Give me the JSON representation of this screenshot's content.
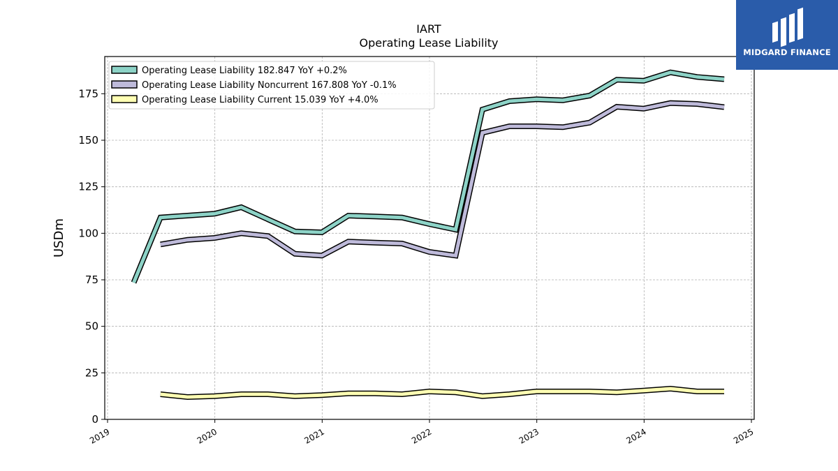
{
  "brand": {
    "name": "MIDGARD FINANCE",
    "color": "#2a5caa"
  },
  "chart_data": {
    "type": "line",
    "title": "IART",
    "subtitle": "Operating Lease Liability",
    "ylabel": "USDm",
    "xlabel": "",
    "xlim": [
      2019.0,
      2025.0
    ],
    "ylim": [
      0,
      195
    ],
    "grid": true,
    "legend_position": "top-left",
    "x_ticks": [
      "2019",
      "2020",
      "2021",
      "2022",
      "2023",
      "2024",
      "2025"
    ],
    "y_ticks": [
      "0",
      "25",
      "50",
      "75",
      "100",
      "125",
      "150",
      "175"
    ],
    "series": [
      {
        "name": "Operating Lease Liability",
        "legend": "Operating Lease Liability  182.847 YoY +0.2%",
        "color": "#8dd3c7",
        "points": [
          [
            "2019-03-31",
            73.5
          ],
          [
            "2019-06-30",
            108.5
          ],
          [
            "2019-09-30",
            109.5
          ],
          [
            "2019-12-31",
            110.5
          ],
          [
            "2020-03-31",
            114.0
          ],
          [
            "2020-06-30",
            107.5
          ],
          [
            "2020-09-30",
            101.0
          ],
          [
            "2020-12-31",
            100.5
          ],
          [
            "2021-03-31",
            109.5
          ],
          [
            "2021-06-30",
            109.0
          ],
          [
            "2021-09-30",
            108.5
          ],
          [
            "2021-12-31",
            105.0
          ],
          [
            "2022-03-31",
            102.0
          ],
          [
            "2022-06-30",
            166.5
          ],
          [
            "2022-09-30",
            171.0
          ],
          [
            "2022-12-31",
            172.0
          ],
          [
            "2023-03-31",
            171.5
          ],
          [
            "2023-06-30",
            174.0
          ],
          [
            "2023-09-30",
            182.5
          ],
          [
            "2023-12-31",
            182.0
          ],
          [
            "2024-03-31",
            186.5
          ],
          [
            "2024-06-30",
            184.0
          ],
          [
            "2024-09-30",
            182.8
          ]
        ]
      },
      {
        "name": "Operating Lease Liability Noncurrent",
        "legend": "Operating Lease Liability Noncurrent  167.808 YoY -0.1%",
        "color": "#bebada",
        "points": [
          [
            "2019-06-30",
            94.0
          ],
          [
            "2019-09-30",
            96.5
          ],
          [
            "2019-12-31",
            97.5
          ],
          [
            "2020-03-31",
            100.0
          ],
          [
            "2020-06-30",
            98.5
          ],
          [
            "2020-09-30",
            89.0
          ],
          [
            "2020-12-31",
            88.0
          ],
          [
            "2021-03-31",
            95.5
          ],
          [
            "2021-06-30",
            95.0
          ],
          [
            "2021-09-30",
            94.5
          ],
          [
            "2021-12-31",
            90.0
          ],
          [
            "2022-03-31",
            88.0
          ],
          [
            "2022-06-30",
            154.0
          ],
          [
            "2022-09-30",
            157.5
          ],
          [
            "2022-12-31",
            157.5
          ],
          [
            "2023-03-31",
            157.0
          ],
          [
            "2023-06-30",
            159.5
          ],
          [
            "2023-09-30",
            168.0
          ],
          [
            "2023-12-31",
            167.0
          ],
          [
            "2024-03-31",
            170.0
          ],
          [
            "2024-06-30",
            169.5
          ],
          [
            "2024-09-30",
            167.8
          ]
        ]
      },
      {
        "name": "Operating Lease Liability Current",
        "legend": "Operating Lease Liability Current  15.039 YoY +4.0%",
        "color": "#ffffb3",
        "points": [
          [
            "2019-06-30",
            13.5
          ],
          [
            "2019-09-30",
            12.0
          ],
          [
            "2019-12-31",
            12.5
          ],
          [
            "2020-03-31",
            13.5
          ],
          [
            "2020-06-30",
            13.5
          ],
          [
            "2020-09-30",
            12.5
          ],
          [
            "2020-12-31",
            13.0
          ],
          [
            "2021-03-31",
            14.0
          ],
          [
            "2021-06-30",
            14.0
          ],
          [
            "2021-09-30",
            13.5
          ],
          [
            "2021-12-31",
            15.0
          ],
          [
            "2022-03-31",
            14.5
          ],
          [
            "2022-06-30",
            12.5
          ],
          [
            "2022-09-30",
            13.5
          ],
          [
            "2022-12-31",
            15.0
          ],
          [
            "2023-03-31",
            15.0
          ],
          [
            "2023-06-30",
            15.0
          ],
          [
            "2023-09-30",
            14.5
          ],
          [
            "2023-12-31",
            15.5
          ],
          [
            "2024-03-31",
            16.5
          ],
          [
            "2024-06-30",
            15.0
          ],
          [
            "2024-09-30",
            15.0
          ]
        ]
      }
    ]
  }
}
